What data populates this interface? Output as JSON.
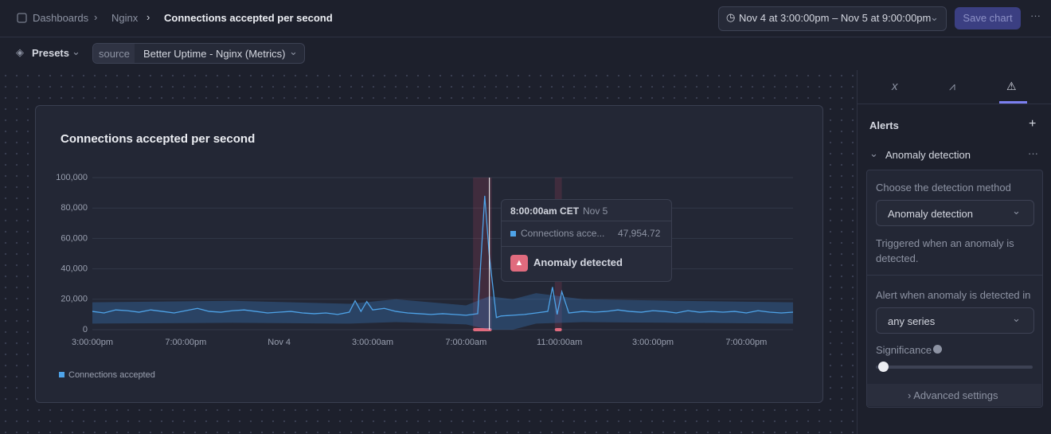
{
  "header": {
    "breadcrumbs": [
      "Dashboards",
      "Nginx",
      "Connections accepted per second"
    ],
    "time_range": "Nov 4 at 3:00:00pm – Nov 5 at 9:00:00pm",
    "save": "Save chart"
  },
  "toolbar": {
    "presets": "Presets",
    "source_label": "source",
    "source_value": "Better Uptime - Nginx (Metrics)"
  },
  "chart_data": {
    "type": "line",
    "title": "Connections accepted per second",
    "x": [
      0,
      0.5,
      1,
      1.5,
      2,
      2.5,
      3,
      3.5,
      4,
      4.5,
      5,
      5.5,
      6,
      6.5,
      7,
      7.5,
      8,
      8.5,
      9,
      9.5,
      10,
      10.5,
      11,
      11.25,
      11.5,
      11.75,
      12,
      12.5,
      13,
      13.5,
      14,
      14.5,
      15,
      15.5,
      16,
      16.5,
      16.8,
      17,
      17.3,
      17.5,
      18,
      18.5,
      19,
      19.5,
      19.7,
      19.9,
      20.1,
      20.4,
      21,
      21.5,
      22,
      22.5,
      23,
      23.5,
      24,
      24.5,
      25,
      25.5,
      26,
      26.5,
      27,
      27.5,
      28,
      28.5,
      29,
      29.5,
      30
    ],
    "series": [
      {
        "name": "Connections accepted",
        "color": "#4ea3e8",
        "values": [
          12000,
          11000,
          13000,
          12500,
          11500,
          13000,
          12000,
          11000,
          12500,
          14000,
          12000,
          11500,
          12500,
          13000,
          12000,
          11000,
          11500,
          12000,
          11000,
          10500,
          11000,
          10000,
          11500,
          19000,
          12000,
          18500,
          13000,
          14000,
          12000,
          11000,
          10500,
          10000,
          10500,
          10000,
          9500,
          10500,
          88000,
          47954.72,
          8000,
          9000,
          9500,
          10000,
          11000,
          12000,
          28000,
          10000,
          25000,
          11000,
          12000,
          11500,
          12000,
          13000,
          12000,
          11500,
          12500,
          12000,
          11000,
          12500,
          11500,
          12000,
          11500,
          12000,
          11000,
          12500,
          11500,
          11000,
          11500
        ]
      }
    ],
    "band": {
      "x": [
        0,
        6,
        11,
        13,
        16,
        17,
        18,
        19,
        21,
        25,
        30
      ],
      "lower": [
        4000,
        4500,
        4000,
        5000,
        3500,
        0,
        0,
        4000,
        5000,
        4500,
        4000
      ],
      "upper": [
        18000,
        19000,
        17000,
        20000,
        16000,
        22000,
        20000,
        24000,
        20000,
        19000,
        18000
      ]
    },
    "anomaly_ranges": [
      [
        16.3,
        17.1
      ],
      [
        19.8,
        20.1
      ]
    ],
    "cursor_x": 17,
    "xlim": [
      0,
      30
    ],
    "xticks": [
      {
        "value": 0,
        "label": "3:00:00pm"
      },
      {
        "value": 4,
        "label": "7:00:00pm"
      },
      {
        "value": 8,
        "label": "Nov 4"
      },
      {
        "value": 12,
        "label": "3:00:00am"
      },
      {
        "value": 16,
        "label": "7:00:00am"
      },
      {
        "value": 20,
        "label": "11:00:00am"
      },
      {
        "value": 24,
        "label": "3:00:00pm"
      },
      {
        "value": 28,
        "label": "7:00:00pm"
      }
    ],
    "ylim": [
      0,
      100000
    ],
    "yticks": [
      0,
      {
        "value": 20000,
        "label": "20,000"
      },
      {
        "value": 40000,
        "label": "40,000"
      },
      {
        "value": 60000,
        "label": "60,000"
      },
      {
        "value": 80000,
        "label": "80,000"
      },
      {
        "value": 100000,
        "label": "100,000"
      }
    ],
    "grid": true,
    "tooltip": {
      "time": "8:00:00am CET",
      "date": "Nov 5",
      "series": "Connections acce...",
      "value": "47,954.72",
      "alert": "Anomaly detected"
    }
  },
  "panel": {
    "alerts": "Alerts",
    "section": "Anomaly detection",
    "method_label": "Choose the detection method",
    "method_value": "Anomaly detection",
    "method_help": "Triggered when an anomaly is detected.",
    "when_label": "Alert when anomaly is detected in",
    "when_value": "any series",
    "significance": "Significance",
    "advanced": "Advanced settings"
  }
}
